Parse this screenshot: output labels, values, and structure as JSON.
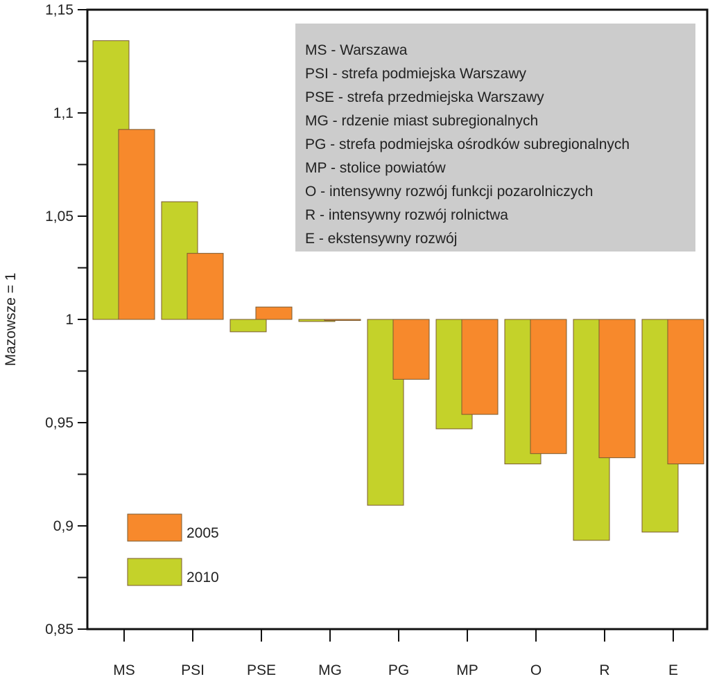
{
  "chart_data": {
    "type": "bar",
    "ylabel": "Mazowsze = 1",
    "ylim": [
      0.85,
      1.15
    ],
    "baseline": 1,
    "y_ticks": [
      {
        "value": 0.85,
        "label": "0,85"
      },
      {
        "value": 0.9,
        "label": "0,9"
      },
      {
        "value": 0.95,
        "label": "0,95"
      },
      {
        "value": 1.0,
        "label": "1"
      },
      {
        "value": 1.05,
        "label": "1,05"
      },
      {
        "value": 1.1,
        "label": "1,1"
      },
      {
        "value": 1.15,
        "label": "1,15"
      }
    ],
    "y_minor_ticks": [
      0.875,
      0.925,
      0.975,
      1.025,
      1.075,
      1.125
    ],
    "categories": [
      "MS",
      "PSI",
      "PSE",
      "MG",
      "PG",
      "MP",
      "O",
      "R",
      "E"
    ],
    "series": [
      {
        "name": "2010",
        "color": "#c4d22a",
        "values": [
          1.135,
          1.057,
          0.994,
          0.999,
          0.91,
          0.947,
          0.93,
          0.893,
          0.897
        ]
      },
      {
        "name": "2005",
        "color": "#f7892c",
        "values": [
          1.092,
          1.032,
          1.006,
          0.9995,
          0.971,
          0.954,
          0.935,
          0.933,
          0.93
        ]
      }
    ],
    "legend": {
      "placement": "bottom-left",
      "items": [
        {
          "label": "2005",
          "color": "#f7892c"
        },
        {
          "label": "2010",
          "color": "#c4d22a"
        }
      ]
    },
    "annotation": {
      "placement": "top-right",
      "background": "#cccccc",
      "lines": [
        "MS - Warszawa",
        "PSI - strefa podmiejska Warszawy",
        "PSE - strefa przedmiejska Warszawy",
        "MG - rdzenie miast subregionalnych",
        "PG - strefa podmiejska ośrodków subregionalnych",
        "MP - stolice powiatów",
        "O - intensywny rozwój funkcji pozarolniczych",
        "R - intensywny rozwój rolnictwa",
        "E - ekstensywny rozwój"
      ]
    },
    "grid": false
  }
}
